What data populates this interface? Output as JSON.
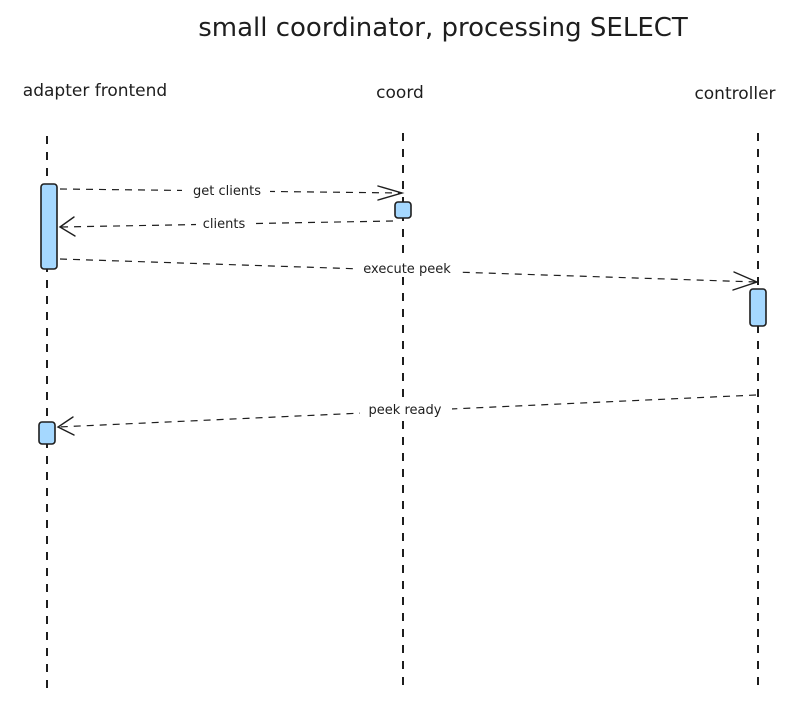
{
  "title": "small coordinator, processing SELECT",
  "actors": [
    {
      "id": "adapter",
      "label": "adapter frontend"
    },
    {
      "id": "coord",
      "label": "coord"
    },
    {
      "id": "controller",
      "label": "controller"
    }
  ],
  "messages": [
    {
      "label": "get clients",
      "from": "adapter",
      "to": "coord"
    },
    {
      "label": "clients",
      "from": "coord",
      "to": "adapter"
    },
    {
      "label": "execute peek",
      "from": "adapter",
      "to": "controller"
    },
    {
      "label": "peek ready",
      "from": "controller",
      "to": "adapter"
    }
  ],
  "colors": {
    "stroke": "#1e1e1e",
    "activation_fill": "#a5d8ff",
    "background": "#ffffff"
  }
}
